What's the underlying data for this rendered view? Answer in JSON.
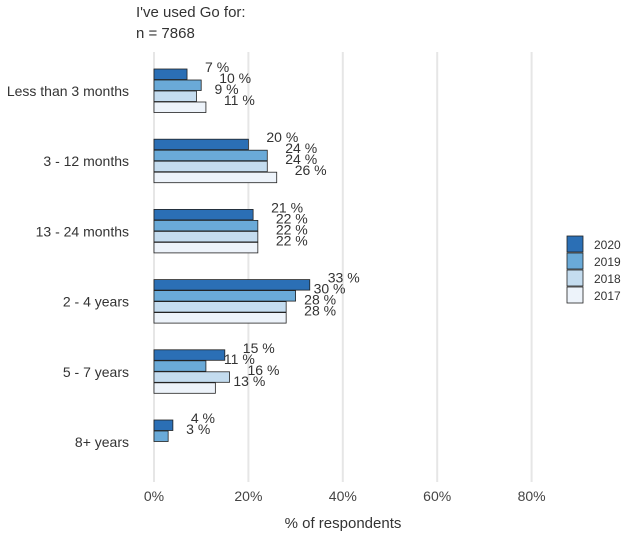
{
  "chart_data": {
    "type": "bar",
    "orientation": "horizontal",
    "title": "I've used Go for:",
    "subtitle": "n = 7868",
    "xlabel": "% of respondents",
    "ylabel": "",
    "xlim": [
      0,
      100
    ],
    "x_ticks": [
      0,
      20,
      40,
      60,
      80
    ],
    "x_tick_labels": [
      "0%",
      "20%",
      "40%",
      "60%",
      "80%"
    ],
    "grid": "vertical",
    "legend_position": "right",
    "categories": [
      "Less than 3 months",
      "3 - 12 months",
      "13 - 24 months",
      "2 - 4 years",
      "5 - 7 years",
      "8+ years"
    ],
    "series": [
      {
        "name": "2020",
        "color": "#2b6fb5",
        "values": [
          7,
          20,
          21,
          33,
          15,
          4
        ],
        "labels": [
          "7 %",
          "20 %",
          "21 %",
          "33 %",
          "15 %",
          "4 %"
        ]
      },
      {
        "name": "2019",
        "color": "#6aaad8",
        "values": [
          10,
          24,
          22,
          30,
          11,
          3
        ],
        "labels": [
          "10 %",
          "24 %",
          "22 %",
          "30 %",
          "11 %",
          "3 %"
        ]
      },
      {
        "name": "2018",
        "color": "#c4dcef",
        "values": [
          9,
          24,
          22,
          28,
          16,
          null
        ],
        "labels": [
          "9 %",
          "24 %",
          "22 %",
          "28 %",
          "16 %",
          ""
        ]
      },
      {
        "name": "2017",
        "color": "#edf3fa",
        "values": [
          11,
          26,
          22,
          28,
          13,
          null
        ],
        "labels": [
          "11 %",
          "26 %",
          "22 %",
          "28 %",
          "13 %",
          ""
        ]
      }
    ]
  }
}
